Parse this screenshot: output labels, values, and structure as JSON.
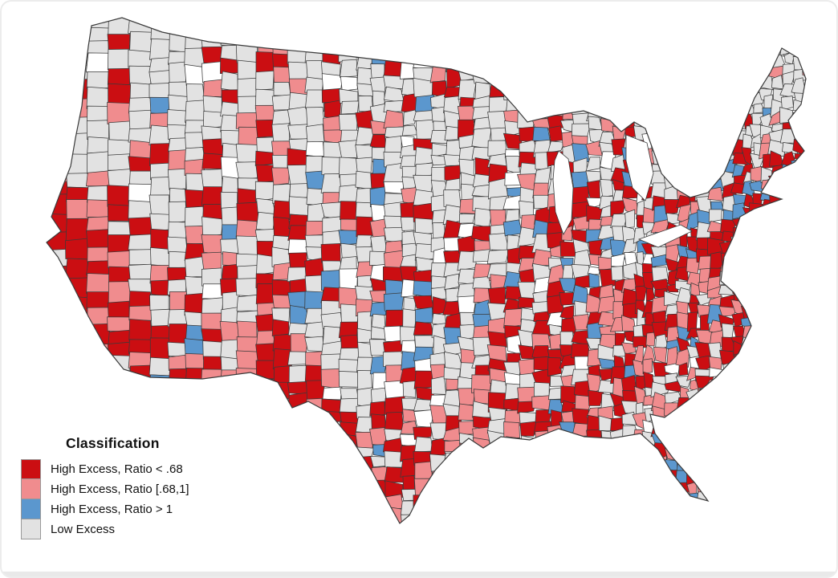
{
  "figure": {
    "background_color": "#ffffff",
    "frame_border_color": "#ececec",
    "kind": "US county-level choropleth map"
  },
  "legend": {
    "title": "Classification",
    "swatch_border_color": "#999999",
    "items": [
      {
        "key": "high-excess-ratio-lt-068",
        "label": "High Excess, Ratio < .68",
        "color": "#cb0e12"
      },
      {
        "key": "high-excess-ratio-068-to-1",
        "label": "High Excess, Ratio [.68,1]",
        "color": "#f08c8e"
      },
      {
        "key": "high-excess-ratio-gt-1",
        "label": "High Excess, Ratio > 1",
        "color": "#5b97ce"
      },
      {
        "key": "low-excess",
        "label": "Low Excess",
        "color": "#e2e2e2"
      }
    ]
  },
  "map": {
    "type": "choropleth",
    "geography": "United States counties",
    "county_border_color": "#3a3a3a",
    "outline_color": "#3a3a3a",
    "water_color": "#ffffff",
    "no_data_color": "#ffffff",
    "classes": {
      "red": "#cb0e12",
      "pink": "#f08c8e",
      "blue": "#5b97ce",
      "gray": "#e2e2e2",
      "white": "#ffffff"
    },
    "seed": 1337,
    "regions": [
      {
        "name": "pacific-northwest",
        "bounds": [
          0.0,
          0.17,
          0.0,
          0.28
        ],
        "weights": {
          "gray": 72,
          "red": 10,
          "pink": 10,
          "blue": 4,
          "white": 4
        }
      },
      {
        "name": "california-coast",
        "bounds": [
          0.0,
          0.13,
          0.28,
          0.75
        ],
        "weights": {
          "red": 52,
          "pink": 26,
          "gray": 16,
          "blue": 4,
          "white": 2
        }
      },
      {
        "name": "borderlands-south-texas",
        "bounds": [
          0.3,
          0.52,
          0.86,
          1.0
        ],
        "weights": {
          "red": 62,
          "pink": 18,
          "gray": 14,
          "blue": 4,
          "white": 2
        }
      },
      {
        "name": "southwest-border",
        "bounds": [
          0.08,
          0.36,
          0.58,
          1.0
        ],
        "weights": {
          "red": 46,
          "pink": 26,
          "gray": 22,
          "blue": 4,
          "white": 2
        }
      },
      {
        "name": "mountain-west",
        "bounds": [
          0.1,
          0.34,
          0.0,
          0.62
        ],
        "weights": {
          "gray": 60,
          "pink": 17,
          "red": 15,
          "blue": 3,
          "white": 5
        }
      },
      {
        "name": "northern-plains",
        "bounds": [
          0.34,
          0.6,
          0.0,
          0.33
        ],
        "weights": {
          "gray": 64,
          "red": 15,
          "pink": 10,
          "white": 7,
          "blue": 4
        }
      },
      {
        "name": "central-plains",
        "bounds": [
          0.34,
          0.58,
          0.33,
          0.68
        ],
        "weights": {
          "gray": 58,
          "red": 17,
          "pink": 10,
          "white": 8,
          "blue": 7
        }
      },
      {
        "name": "texas",
        "bounds": [
          0.3,
          0.62,
          0.68,
          1.0
        ],
        "weights": {
          "red": 40,
          "pink": 22,
          "gray": 28,
          "blue": 6,
          "white": 4
        }
      },
      {
        "name": "upper-midwest",
        "bounds": [
          0.58,
          0.8,
          0.0,
          0.3
        ],
        "weights": {
          "gray": 60,
          "red": 19,
          "pink": 13,
          "blue": 5,
          "white": 3
        }
      },
      {
        "name": "northeast-interior",
        "bounds": [
          0.8,
          1.0,
          0.0,
          0.26
        ],
        "weights": {
          "gray": 72,
          "pink": 13,
          "red": 11,
          "blue": 4,
          "white": 0
        }
      },
      {
        "name": "east-coast-metro",
        "bounds": [
          0.82,
          1.0,
          0.26,
          0.46
        ],
        "weights": {
          "red": 38,
          "blue": 22,
          "pink": 16,
          "gray": 20,
          "white": 4
        }
      },
      {
        "name": "ohio-valley",
        "bounds": [
          0.58,
          0.82,
          0.3,
          0.52
        ],
        "weights": {
          "red": 30,
          "gray": 32,
          "pink": 20,
          "blue": 11,
          "white": 7
        }
      },
      {
        "name": "florida",
        "bounds": [
          0.74,
          1.0,
          0.8,
          1.0
        ],
        "weights": {
          "red": 34,
          "pink": 25,
          "blue": 19,
          "gray": 18,
          "white": 4
        }
      },
      {
        "name": "southeast",
        "bounds": [
          0.5,
          1.0,
          0.46,
          1.0
        ],
        "weights": {
          "red": 37,
          "pink": 26,
          "gray": 25,
          "blue": 7,
          "white": 5
        }
      },
      {
        "name": "default",
        "bounds": [
          0.0,
          1.0,
          0.0,
          1.0
        ],
        "weights": {
          "gray": 50,
          "red": 22,
          "pink": 16,
          "blue": 6,
          "white": 6
        }
      }
    ]
  }
}
